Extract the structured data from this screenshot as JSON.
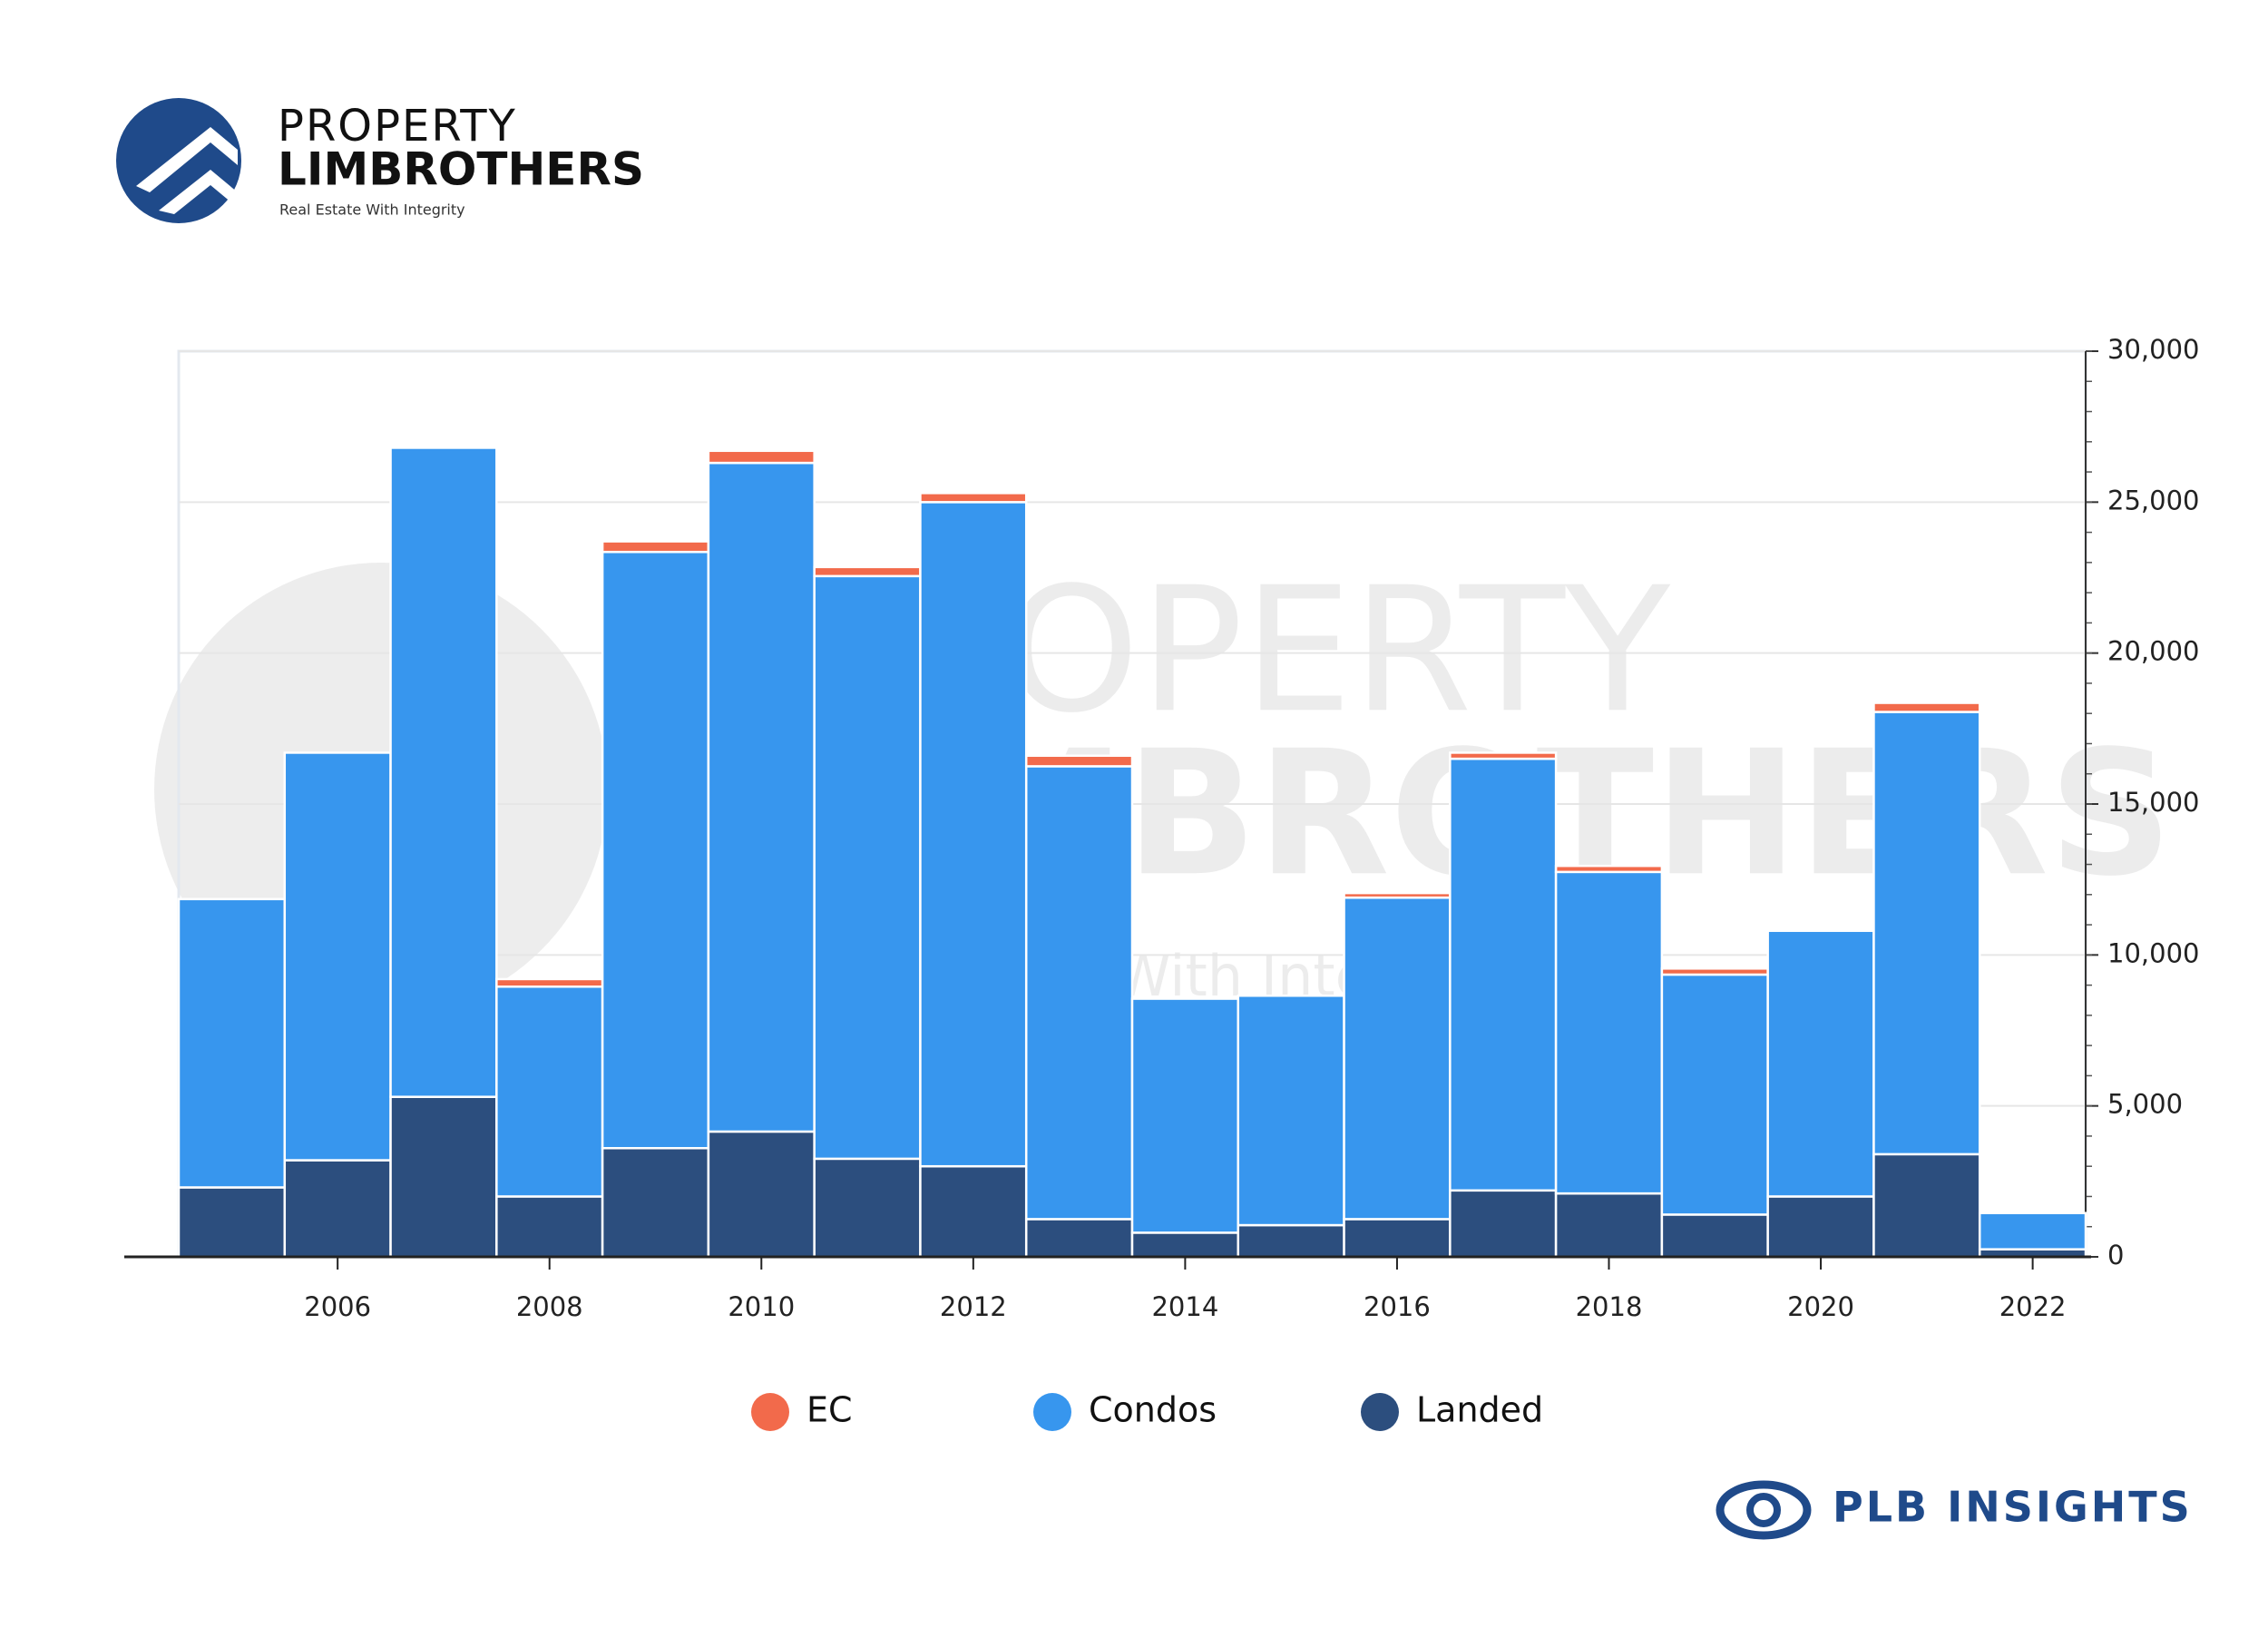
{
  "brand": {
    "name_top": "PROPERTY",
    "name_bottom": "LIMBROTHERS",
    "tagline": "Real Estate With Integrity",
    "insights": "PLB INSIGHTS"
  },
  "chart_data": {
    "type": "bar",
    "stacked": true,
    "x": [
      2005,
      2006,
      2007,
      2008,
      2009,
      2010,
      2011,
      2012,
      2013,
      2014,
      2015,
      2016,
      2017,
      2018,
      2019,
      2020,
      2021,
      2022
    ],
    "series": [
      {
        "name": "EC",
        "color": "#f26a4b",
        "values": [
          0,
          0,
          0,
          250,
          350,
          400,
          300,
          300,
          350,
          0,
          0,
          150,
          200,
          200,
          200,
          0,
          300,
          0
        ]
      },
      {
        "name": "Condos",
        "color": "#3796ee",
        "values": [
          9550,
          13500,
          21500,
          6950,
          19750,
          22150,
          19300,
          22000,
          15000,
          7750,
          7600,
          10650,
          14300,
          10650,
          7950,
          8800,
          14650,
          1200
        ]
      },
      {
        "name": "Landed",
        "color": "#2c4e7e",
        "values": [
          2300,
          3200,
          5300,
          2000,
          3600,
          4150,
          3250,
          3000,
          1250,
          800,
          1050,
          1250,
          2200,
          2100,
          1400,
          2000,
          3400,
          250
        ]
      }
    ],
    "xlim": [
      2004.5,
      2022.5
    ],
    "xticks": [
      2006,
      2008,
      2010,
      2012,
      2014,
      2016,
      2018,
      2020,
      2022
    ],
    "ylim": [
      0,
      30000
    ],
    "yticks": [
      0,
      {
        "value": 5000,
        "label": "5,000"
      },
      {
        "value": 10000,
        "label": "10,000"
      },
      {
        "value": 15000,
        "label": "15,000"
      },
      {
        "value": 20000,
        "label": "20,000"
      },
      {
        "value": 25000,
        "label": "25,000"
      },
      {
        "value": 30000,
        "label": "30,000"
      }
    ],
    "grid": true,
    "y_axis_side": "right",
    "legend": "bottom"
  }
}
